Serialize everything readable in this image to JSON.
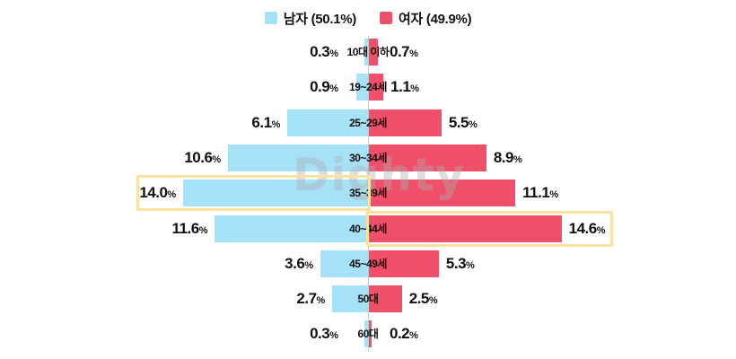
{
  "legend": {
    "items": [
      {
        "name": "male",
        "label": "남자 (50.1%)",
        "color": "#A5E1F7"
      },
      {
        "name": "female",
        "label": "여자 (49.9%)",
        "color": "#F1506A"
      }
    ]
  },
  "watermark": "Dighty",
  "percent_sign": "%",
  "colors": {
    "male_bar": "#A5E1F7",
    "female_bar": "#F1506A",
    "highlight_border": "#F8E2A2",
    "axis_line": "#C9C9C9",
    "label_text": "#111111"
  },
  "chart_data": {
    "type": "bar",
    "subtype": "population-pyramid",
    "unit": "%",
    "grid": false,
    "legend_position": "top",
    "categories": [
      "10대 이하",
      "19~24세",
      "25~29세",
      "30~34세",
      "35~39세",
      "40~44세",
      "45~49세",
      "50대",
      "60대"
    ],
    "series": [
      {
        "name": "남자",
        "total_pct": 50.1,
        "side": "left",
        "color": "#A5E1F7",
        "values": [
          0.3,
          0.9,
          6.1,
          10.6,
          14.0,
          11.6,
          3.6,
          2.7,
          0.3
        ],
        "labels": [
          "0.3",
          "0.9",
          "6.1",
          "10.6",
          "14.0",
          "11.6",
          "3.6",
          "2.7",
          "0.3"
        ]
      },
      {
        "name": "여자",
        "total_pct": 49.9,
        "side": "right",
        "color": "#F1506A",
        "values": [
          0.7,
          1.1,
          5.5,
          8.9,
          11.1,
          14.6,
          5.3,
          2.5,
          0.2
        ],
        "labels": [
          "0.7",
          "1.1",
          "5.5",
          "8.9",
          "11.1",
          "14.6",
          "5.3",
          "2.5",
          "0.2"
        ]
      }
    ],
    "highlighted": [
      {
        "series": "남자",
        "category": "35~39세",
        "value": 14.0
      },
      {
        "series": "여자",
        "category": "40~44세",
        "value": 14.6
      }
    ]
  }
}
